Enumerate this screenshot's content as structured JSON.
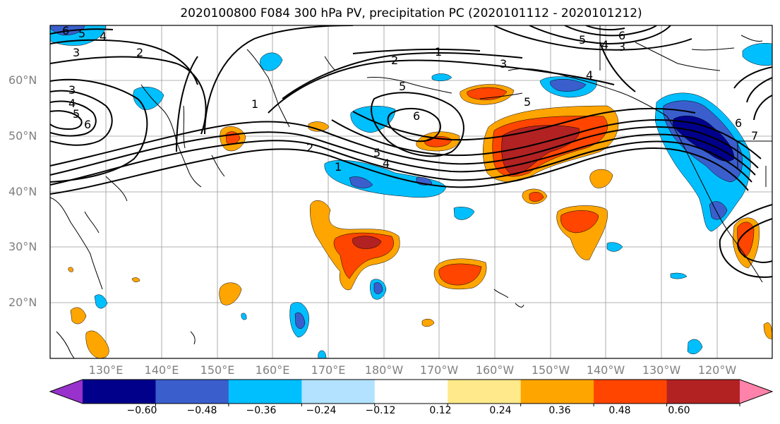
{
  "title": "2020100800 F084 300 hPa PV, precipitation PC (2020101112 - 2020101212)",
  "lat_labels": [
    "60°N",
    "50°N",
    "40°N",
    "30°N",
    "20°N"
  ],
  "lon_labels": [
    "130°E",
    "140°E",
    "150°E",
    "160°E",
    "170°E",
    "180°W",
    "170°W",
    "160°W",
    "150°W",
    "140°W",
    "130°W",
    "120°W"
  ],
  "contour_labels": [
    "6",
    "5",
    "4",
    "3",
    "2",
    "1",
    "2",
    "3",
    "4",
    "5",
    "6",
    "1",
    "2",
    "5",
    "4",
    "1",
    "6",
    "5",
    "6",
    "7",
    "3",
    "4",
    "5",
    "6",
    "4",
    "3",
    "5",
    "6"
  ],
  "colorbar": {
    "tick_labels": [
      "−0.60",
      "−0.48",
      "−0.36",
      "−0.24",
      "−0.12",
      "0.12",
      "0.24",
      "0.36",
      "0.48",
      "0.60"
    ],
    "colors": [
      "#9932cc",
      "#00008b",
      "#3a5fcd",
      "#00bfff",
      "#b2e2ff",
      "#ffffff",
      "#ffe98a",
      "#ffa500",
      "#ff4500",
      "#b22222",
      "#ff82ab"
    ]
  },
  "colors": {
    "frame": "#000000",
    "grid": "#9a9a9a",
    "axis_text": "#808080"
  }
}
